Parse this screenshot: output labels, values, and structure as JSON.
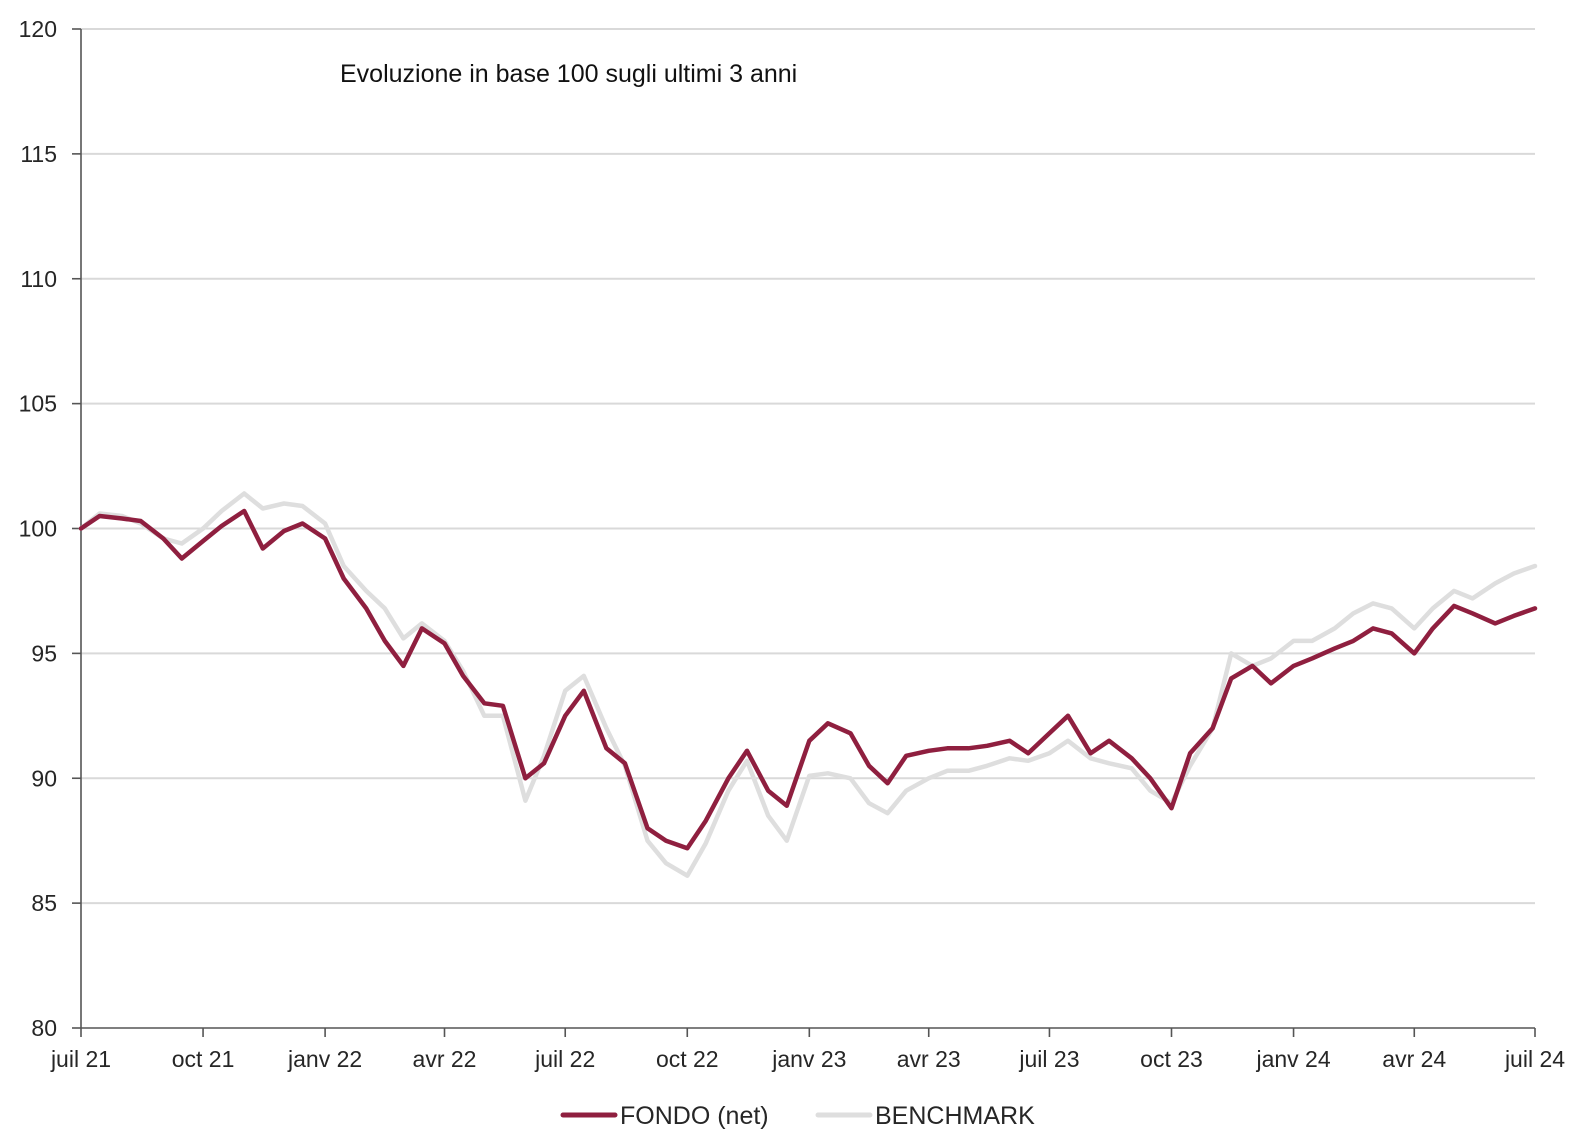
{
  "chart_data": {
    "type": "line",
    "title": "Evoluzione in base 100 sugli ultimi 3 anni",
    "xlabel": "",
    "ylabel": "",
    "ylim": [
      80,
      120
    ],
    "yticks": [
      80,
      85,
      90,
      95,
      100,
      105,
      110,
      115,
      120
    ],
    "xlim": [
      "2021-07",
      "2024-07"
    ],
    "xticks": [
      {
        "date": "2021-07",
        "label": "juil 21"
      },
      {
        "date": "2021-10",
        "label": "oct 21"
      },
      {
        "date": "2022-01",
        "label": "janv 22"
      },
      {
        "date": "2022-04",
        "label": "avr 22"
      },
      {
        "date": "2022-07",
        "label": "juil 22"
      },
      {
        "date": "2022-10",
        "label": "oct 22"
      },
      {
        "date": "2023-01",
        "label": "janv 23"
      },
      {
        "date": "2023-04",
        "label": "avr 23"
      },
      {
        "date": "2023-07",
        "label": "juil 23"
      },
      {
        "date": "2023-10",
        "label": "oct 23"
      },
      {
        "date": "2024-01",
        "label": "janv 24"
      },
      {
        "date": "2024-04",
        "label": "avr 24"
      },
      {
        "date": "2024-07",
        "label": "juil 24"
      }
    ],
    "grid": true,
    "legend": "bottom",
    "x": [
      "2021-07-01",
      "2021-07-15",
      "2021-08-01",
      "2021-08-15",
      "2021-09-01",
      "2021-09-15",
      "2021-10-01",
      "2021-10-15",
      "2021-11-01",
      "2021-11-15",
      "2021-12-01",
      "2021-12-15",
      "2022-01-01",
      "2022-01-15",
      "2022-02-01",
      "2022-02-15",
      "2022-03-01",
      "2022-03-15",
      "2022-04-01",
      "2022-04-15",
      "2022-05-01",
      "2022-05-15",
      "2022-06-01",
      "2022-06-15",
      "2022-07-01",
      "2022-07-15",
      "2022-08-01",
      "2022-08-15",
      "2022-09-01",
      "2022-09-15",
      "2022-10-01",
      "2022-10-15",
      "2022-11-01",
      "2022-11-15",
      "2022-12-01",
      "2022-12-15",
      "2023-01-01",
      "2023-01-15",
      "2023-02-01",
      "2023-02-15",
      "2023-03-01",
      "2023-03-15",
      "2023-04-01",
      "2023-04-15",
      "2023-05-01",
      "2023-05-15",
      "2023-06-01",
      "2023-06-15",
      "2023-07-01",
      "2023-07-15",
      "2023-08-01",
      "2023-08-15",
      "2023-09-01",
      "2023-09-15",
      "2023-10-01",
      "2023-10-15",
      "2023-11-01",
      "2023-11-15",
      "2023-12-01",
      "2023-12-15",
      "2024-01-01",
      "2024-01-15",
      "2024-02-01",
      "2024-02-15",
      "2024-03-01",
      "2024-03-15",
      "2024-04-01",
      "2024-04-15",
      "2024-05-01",
      "2024-05-15",
      "2024-06-01",
      "2024-06-15",
      "2024-07-01"
    ],
    "series": [
      {
        "name": "FONDO (net)",
        "color": "#8f1f3f",
        "values": [
          100.0,
          100.5,
          100.4,
          100.3,
          99.6,
          98.8,
          99.5,
          100.1,
          100.7,
          99.2,
          99.9,
          100.2,
          99.6,
          98.0,
          96.8,
          95.5,
          94.5,
          96.0,
          95.4,
          94.1,
          93.0,
          92.9,
          90.0,
          90.6,
          92.5,
          93.5,
          91.2,
          90.6,
          88.0,
          87.5,
          87.2,
          88.3,
          90.0,
          91.1,
          89.5,
          88.9,
          91.5,
          92.2,
          91.8,
          90.5,
          89.8,
          90.9,
          91.1,
          91.2,
          91.2,
          91.3,
          91.5,
          91.0,
          91.8,
          92.5,
          91.0,
          91.5,
          90.8,
          90.0,
          88.8,
          91.0,
          92.0,
          94.0,
          94.5,
          93.8,
          94.5,
          94.8,
          95.2,
          95.5,
          96.0,
          95.8,
          95.0,
          96.0,
          96.9,
          96.6,
          96.2,
          96.5,
          96.8
        ]
      },
      {
        "name": "BENCHMARK",
        "color": "#dedede",
        "values": [
          100.0,
          100.6,
          100.5,
          100.2,
          99.6,
          99.4,
          100.0,
          100.7,
          101.4,
          100.8,
          101.0,
          100.9,
          100.2,
          98.5,
          97.5,
          96.8,
          95.6,
          96.2,
          95.5,
          94.3,
          92.5,
          92.5,
          89.1,
          90.9,
          93.5,
          94.1,
          92.0,
          90.5,
          87.5,
          86.6,
          86.1,
          87.4,
          89.5,
          90.7,
          88.5,
          87.5,
          90.1,
          90.2,
          90.0,
          89.0,
          88.6,
          89.5,
          90.0,
          90.3,
          90.3,
          90.5,
          90.8,
          90.7,
          91.0,
          91.5,
          90.8,
          90.6,
          90.4,
          89.5,
          89.0,
          90.5,
          92.0,
          95.0,
          94.5,
          94.8,
          95.5,
          95.5,
          96.0,
          96.6,
          97.0,
          96.8,
          96.0,
          96.8,
          97.5,
          97.2,
          97.8,
          98.2,
          98.5
        ]
      }
    ]
  }
}
